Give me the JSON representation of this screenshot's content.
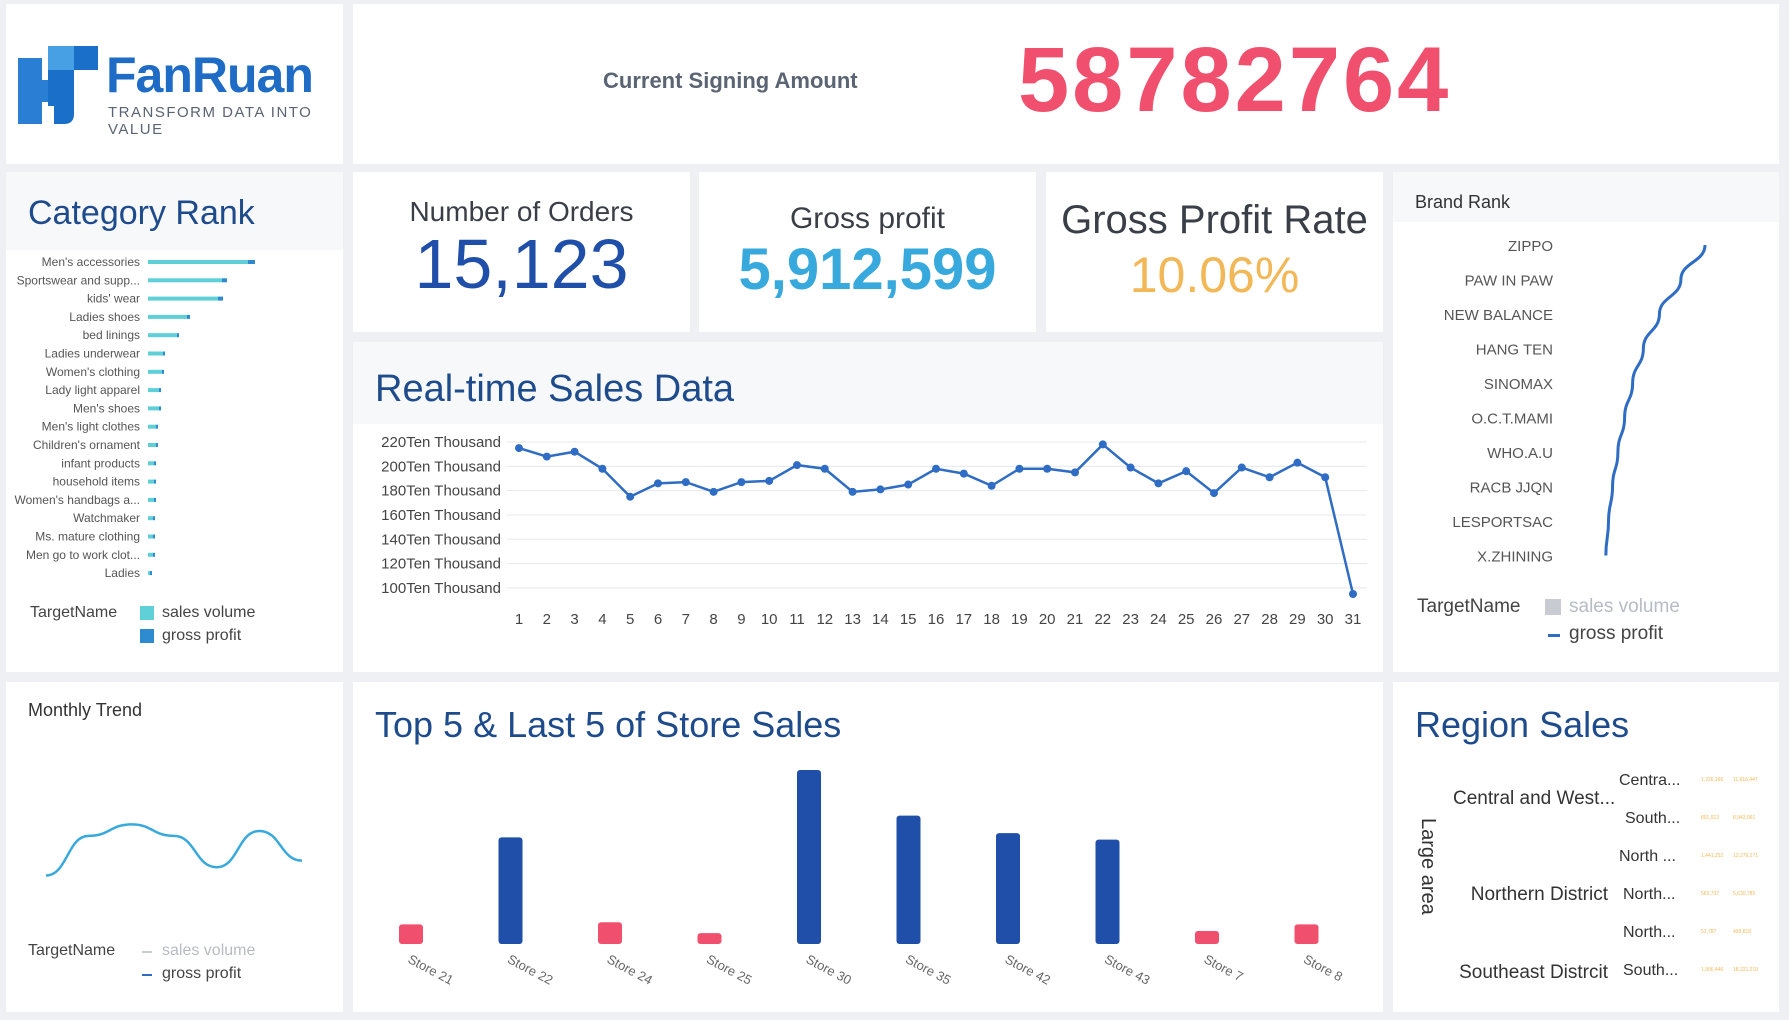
{
  "logo": {
    "name": "FanRuan",
    "tagline": "TRANSFORM DATA INTO VALUE"
  },
  "header": {
    "label": "Current Signing Amount",
    "value": "58782764"
  },
  "kpis": [
    {
      "label": "Number of Orders",
      "value": "15,123"
    },
    {
      "label": "Gross profit",
      "value": "5,912,599"
    },
    {
      "label": "Gross Profit Rate",
      "value": "10.06%"
    }
  ],
  "colors": {
    "title": "#1e4b8c",
    "red": "#f0506e",
    "blue": "#1f4fa8",
    "cyan": "#38a9dd",
    "gold": "#f2b857",
    "teal": "#5fcfd8",
    "line": "#2f6cc4"
  },
  "category_rank": {
    "title": "Category Rank",
    "legend": {
      "target": "TargetName",
      "sales": "sales volume",
      "profit": "gross profit"
    }
  },
  "realtime": {
    "title": "Real-time Sales Data"
  },
  "brand_rank": {
    "title": "Brand Rank",
    "legend": {
      "target": "TargetName",
      "sales": "sales volume",
      "profit": "gross profit"
    }
  },
  "monthly": {
    "title": "Monthly Trend",
    "legend": {
      "target": "TargetName",
      "sales": "sales volume",
      "profit": "gross profit"
    }
  },
  "store_sales": {
    "title": "Top 5 & Last 5 of Store Sales"
  },
  "region": {
    "title": "Region Sales",
    "axis_label": "Large area",
    "groups": [
      "Central and West...",
      "Northern District",
      "Southeast Distrcit"
    ],
    "rows": [
      {
        "label": "Centra...",
        "v1": "1,326,166",
        "v2": "11,616,447"
      },
      {
        "label": "South...",
        "v1": "801,913",
        "v2": "8,943,061"
      },
      {
        "label": "North ...",
        "v1": "1,441,252",
        "v2": "13,279,271"
      },
      {
        "label": "North...",
        "v1": "563,737",
        "v2": "5,630,785"
      },
      {
        "label": "North...",
        "v1": "51,787",
        "v2": "499,818"
      },
      {
        "label": "South...",
        "v1": "1,906,446",
        "v2": "18,221,219"
      }
    ]
  },
  "chart_data": [
    {
      "id": "category_rank",
      "type": "bar",
      "orientation": "horizontal",
      "categories": [
        "Men's accessories",
        "Sportswear and supp...",
        "kids' wear",
        "Ladies shoes",
        "bed linings",
        "Ladies underwear",
        "Women's clothing",
        "Lady light apparel",
        "Men's shoes",
        "Men's light clothes",
        "Children's ornament",
        "infant products",
        "household items",
        "Women's handbags a...",
        "Watchmaker",
        "Ms. mature clothing",
        "Men go to work clot...",
        "Ladies"
      ],
      "series": [
        {
          "name": "sales volume",
          "values": [
            100,
            74,
            70,
            39,
            29,
            15,
            14,
            11,
            11,
            8,
            8,
            6,
            6,
            6,
            5,
            5,
            5,
            2
          ]
        },
        {
          "name": "gross profit",
          "values": [
            7,
            5,
            5,
            3,
            2,
            1.5,
            1.2,
            1,
            1,
            1,
            1,
            1,
            1,
            1,
            1,
            1,
            1,
            0.5
          ]
        }
      ]
    },
    {
      "id": "realtime",
      "type": "line",
      "title": "Real-time Sales Data",
      "x": [
        "1",
        "2",
        "3",
        "4",
        "5",
        "6",
        "7",
        "8",
        "9",
        "10",
        "11",
        "12",
        "13",
        "14",
        "15",
        "16",
        "17",
        "18",
        "19",
        "20",
        "21",
        "22",
        "23",
        "24",
        "25",
        "26",
        "27",
        "28",
        "29",
        "30",
        "31"
      ],
      "values": [
        2150000,
        2080000,
        2120000,
        1980000,
        1750000,
        1860000,
        1870000,
        1790000,
        1870000,
        1880000,
        2010000,
        1980000,
        1790000,
        1810000,
        1850000,
        1980000,
        1940000,
        1840000,
        1980000,
        1980000,
        1950000,
        2180000,
        1990000,
        1860000,
        1960000,
        1780000,
        1990000,
        1910000,
        2030000,
        1910000,
        950000
      ],
      "y_ticks": [
        {
          "value": 2200000,
          "label": "220Ten Thousand"
        },
        {
          "value": 2000000,
          "label": "200Ten Thousand"
        },
        {
          "value": 1800000,
          "label": "180Ten Thousand"
        },
        {
          "value": 1600000,
          "label": "160Ten Thousand"
        },
        {
          "value": 1400000,
          "label": "140Ten Thousand"
        },
        {
          "value": 1200000,
          "label": "120Ten Thousand"
        },
        {
          "value": 1000000,
          "label": "100Ten Thousand"
        }
      ],
      "ylim": [
        950000,
        2200000
      ]
    },
    {
      "id": "brand_rank",
      "type": "line",
      "categories": [
        "ZIPPO",
        "PAW IN PAW",
        "NEW BALANCE",
        "HANG TEN",
        "SINOMAX",
        "O.C.T.MAMI",
        "WHO.A.U",
        "RACB JJQN",
        "LESPORTSAC",
        "X.ZHINING"
      ],
      "series": [
        {
          "name": "gross profit",
          "values": [
            100,
            82,
            66,
            54,
            46,
            40,
            35,
            31,
            28,
            26
          ]
        }
      ],
      "xlim": [
        0,
        100
      ]
    },
    {
      "id": "monthly",
      "type": "line",
      "title": "Monthly Trend",
      "series": [
        {
          "name": "gross profit",
          "values": [
            20,
            68,
            82,
            68,
            30,
            74,
            38
          ]
        }
      ],
      "ylim": [
        0,
        100
      ]
    },
    {
      "id": "store_sales",
      "type": "bar",
      "categories": [
        "Store 21",
        "Store 22",
        "Store 24",
        "Store 25",
        "Store 30",
        "Store 35",
        "Store 42",
        "Store 43",
        "Store 7",
        "Store 8"
      ],
      "values": [
        18,
        98,
        20,
        10,
        160,
        118,
        102,
        96,
        12,
        18
      ],
      "highlight": [
        "bottom",
        "top",
        "bottom",
        "bottom",
        "top",
        "top",
        "top",
        "top",
        "bottom",
        "bottom"
      ],
      "ylim": [
        0,
        160
      ]
    }
  ]
}
